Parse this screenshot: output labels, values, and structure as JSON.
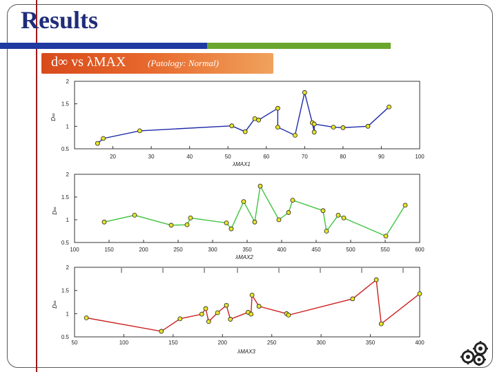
{
  "slide": {
    "title": "Results",
    "subtitle_main": "d∞ vs λMAX",
    "subtitle_note": "(Patology: Normal)"
  },
  "colors": {
    "title": "#1f2d7a",
    "accent_line": "#a01818",
    "subtitle_bg": "#e25a22",
    "titlebar": [
      "#1f3aa0",
      "#6aa62e"
    ]
  },
  "decor": {
    "icon": "gears-icon"
  },
  "chart_data": [
    {
      "type": "line",
      "ylabel": "D∞",
      "xlabel": "λMAX1",
      "xlim": [
        10,
        100
      ],
      "ylim": [
        0.5,
        2
      ],
      "xticks": [
        20,
        30,
        40,
        50,
        60,
        70,
        80,
        90,
        100
      ],
      "xtick_labels": [
        "20",
        "30",
        "40",
        "50",
        "60",
        "70",
        "80",
        "90",
        "100"
      ],
      "yticks": [
        0.5,
        1,
        1.5,
        2
      ],
      "ytick_labels": [
        "0.5",
        "1",
        "1.5",
        "2"
      ],
      "color": "#1d2aa8",
      "marker_color": "#e8e42a",
      "grid": false,
      "x": [
        16,
        17.5,
        27,
        51,
        54.5,
        57,
        58,
        63,
        63,
        67.5,
        70,
        72,
        72.5,
        72.5,
        77.5,
        80,
        86.5,
        92
      ],
      "y": [
        0.62,
        0.73,
        0.9,
        1.01,
        0.88,
        1.17,
        1.14,
        1.4,
        0.98,
        0.8,
        1.75,
        1.08,
        0.87,
        1.05,
        0.98,
        0.97,
        1.0,
        1.43
      ]
    },
    {
      "type": "line",
      "ylabel": "D∞",
      "xlabel": "λMAX2",
      "xlim": [
        100,
        600
      ],
      "ylim": [
        0.5,
        2
      ],
      "xticks": [
        100,
        150,
        200,
        250,
        300,
        350,
        400,
        450,
        500,
        550,
        600
      ],
      "xtick_labels": [
        "100",
        "150",
        "200",
        "250",
        "300",
        "350",
        "400",
        "450",
        "500",
        "550",
        "600"
      ],
      "yticks": [
        0.5,
        1,
        1.5,
        2
      ],
      "ytick_labels": [
        "0.5",
        "1",
        "1.5",
        "2"
      ],
      "color": "#3ec43e",
      "marker_color": "#e8e42a",
      "grid": false,
      "x": [
        143,
        187,
        240,
        263,
        268,
        320,
        327,
        345,
        361,
        369,
        396,
        410,
        416,
        460,
        465,
        482,
        490,
        551,
        579
      ],
      "y": [
        0.95,
        1.1,
        0.88,
        0.89,
        1.04,
        0.93,
        0.8,
        1.4,
        0.95,
        1.74,
        1.0,
        1.16,
        1.43,
        1.2,
        0.75,
        1.1,
        1.04,
        0.64,
        1.32
      ]
    },
    {
      "type": "line",
      "ylabel": "D∞",
      "xlabel": "λMAX3",
      "xlim": [
        50,
        400
      ],
      "ylim": [
        0.5,
        2
      ],
      "xticks": [
        50,
        100,
        150,
        200,
        250,
        300,
        350,
        400
      ],
      "xtick_labels": [
        "50",
        "100",
        "150",
        "200",
        "250",
        "300",
        "350",
        "400"
      ],
      "yticks": [
        0.5,
        1,
        1.5,
        2
      ],
      "ytick_labels": [
        "0.5",
        "1",
        "1.5",
        "2"
      ],
      "color": "#cc1f1f",
      "marker_color": "#e8e42a",
      "grid": false,
      "x": [
        62,
        138,
        157,
        179,
        183,
        186,
        195,
        204,
        208,
        226,
        229,
        230,
        237,
        265,
        267,
        332,
        356,
        361,
        400
      ],
      "y": [
        0.91,
        0.62,
        0.89,
        0.99,
        1.11,
        0.83,
        1.02,
        1.18,
        0.88,
        1.03,
        0.99,
        1.4,
        1.16,
        1.0,
        0.97,
        1.32,
        1.73,
        0.78,
        1.43
      ]
    }
  ]
}
